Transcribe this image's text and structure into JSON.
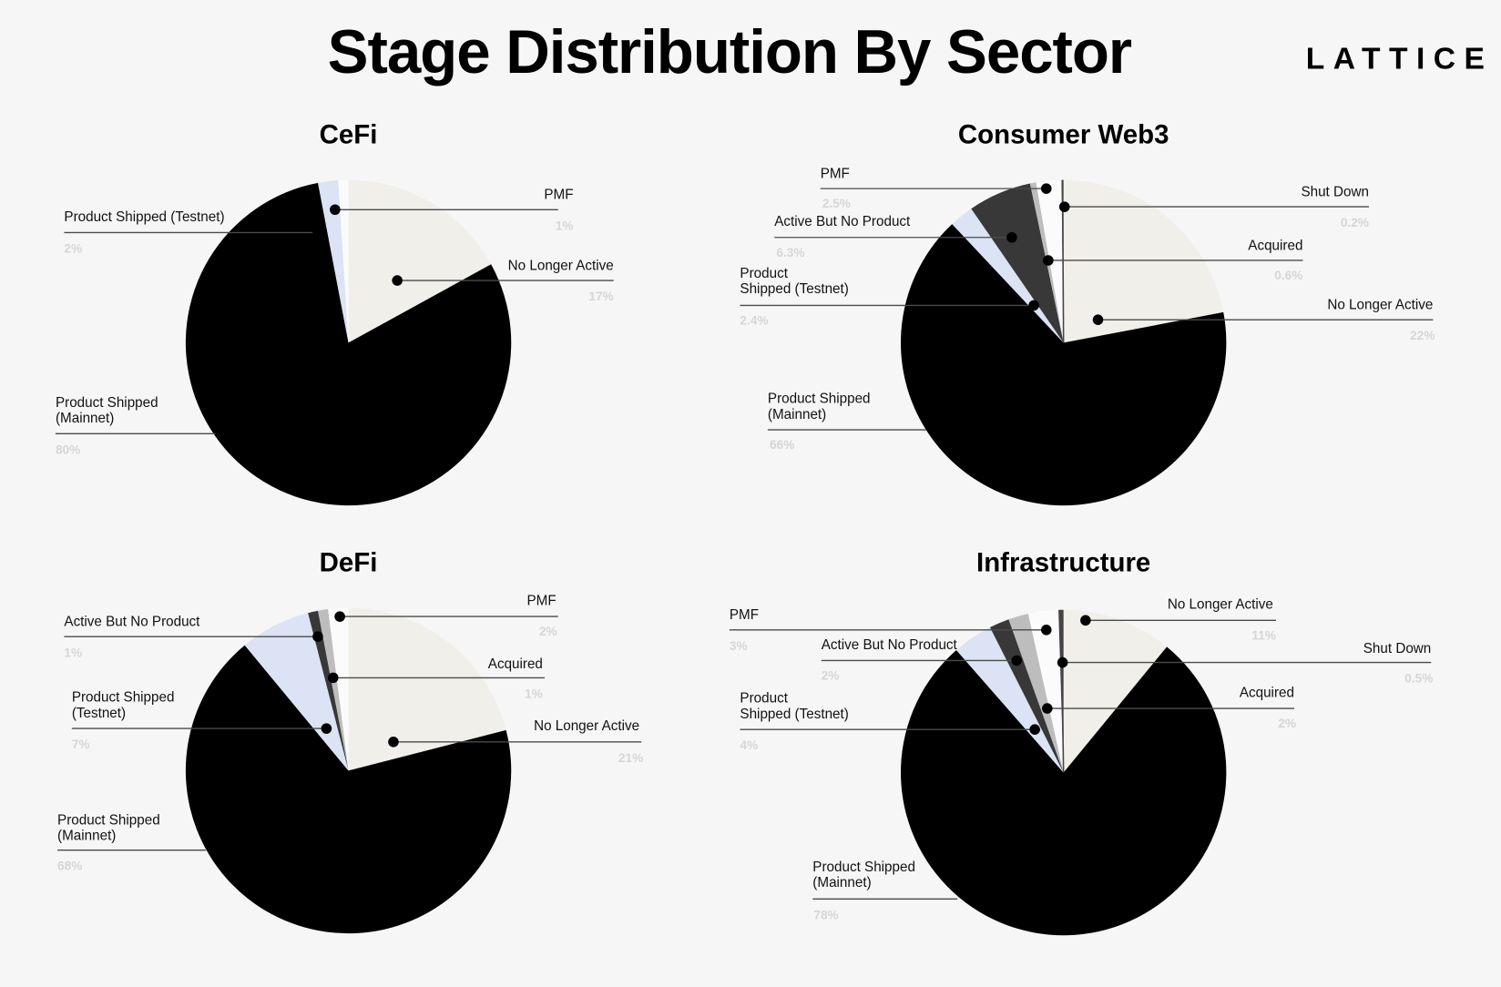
{
  "title": "Stage Distribution By Sector",
  "logo": "LATTICE",
  "colors": {
    "background": "#f6f6f6",
    "No Longer Active": "#f0efe9",
    "Product Shipped (Mainnet)": "#000000",
    "Product Shipped (Testnet)": "#dbe3f4",
    "Active But No Product": "#383838",
    "Acquired": "#bdbdbd",
    "PMF": "#fbfbfb",
    "Shut Down": "#444444"
  },
  "chart_data": [
    {
      "type": "pie",
      "title": "CeFi",
      "slices": [
        {
          "label": "No Longer Active",
          "value": 17,
          "pct_label": "17%"
        },
        {
          "label": "Product Shipped (Mainnet)",
          "value": 80,
          "pct_label": "80%"
        },
        {
          "label": "Product Shipped (Testnet)",
          "value": 2,
          "pct_label": "2%"
        },
        {
          "label": "PMF",
          "value": 1,
          "pct_label": "1%"
        }
      ]
    },
    {
      "type": "pie",
      "title": "Consumer Web3",
      "slices": [
        {
          "label": "No Longer Active",
          "value": 22,
          "pct_label": "22%"
        },
        {
          "label": "Product Shipped (Mainnet)",
          "value": 66,
          "pct_label": "66%"
        },
        {
          "label": "Product Shipped (Testnet)",
          "value": 2.4,
          "pct_label": "2.4%"
        },
        {
          "label": "Active But No Product",
          "value": 6.3,
          "pct_label": "6.3%"
        },
        {
          "label": "Acquired",
          "value": 0.6,
          "pct_label": "0.6%"
        },
        {
          "label": "PMF",
          "value": 2.5,
          "pct_label": "2.5%"
        },
        {
          "label": "Shut Down",
          "value": 0.2,
          "pct_label": "0.2%"
        }
      ]
    },
    {
      "type": "pie",
      "title": "DeFi",
      "slices": [
        {
          "label": "No Longer Active",
          "value": 21,
          "pct_label": "21%"
        },
        {
          "label": "Product Shipped (Mainnet)",
          "value": 68,
          "pct_label": "68%"
        },
        {
          "label": "Product Shipped (Testnet)",
          "value": 7,
          "pct_label": "7%"
        },
        {
          "label": "Active But No Product",
          "value": 1,
          "pct_label": "1%"
        },
        {
          "label": "Acquired",
          "value": 1,
          "pct_label": "1%"
        },
        {
          "label": "PMF",
          "value": 2,
          "pct_label": "2%"
        }
      ]
    },
    {
      "type": "pie",
      "title": "Infrastructure",
      "slices": [
        {
          "label": "No Longer Active",
          "value": 11,
          "pct_label": "11%"
        },
        {
          "label": "Product Shipped (Mainnet)",
          "value": 78,
          "pct_label": "78%"
        },
        {
          "label": "Product Shipped (Testnet)",
          "value": 4,
          "pct_label": "4%"
        },
        {
          "label": "Active But No Product",
          "value": 2,
          "pct_label": "2%"
        },
        {
          "label": "Acquired",
          "value": 2,
          "pct_label": "2%"
        },
        {
          "label": "PMF",
          "value": 3,
          "pct_label": "3%"
        },
        {
          "label": "Shut Down",
          "value": 0.5,
          "pct_label": "0.5%"
        }
      ]
    }
  ]
}
